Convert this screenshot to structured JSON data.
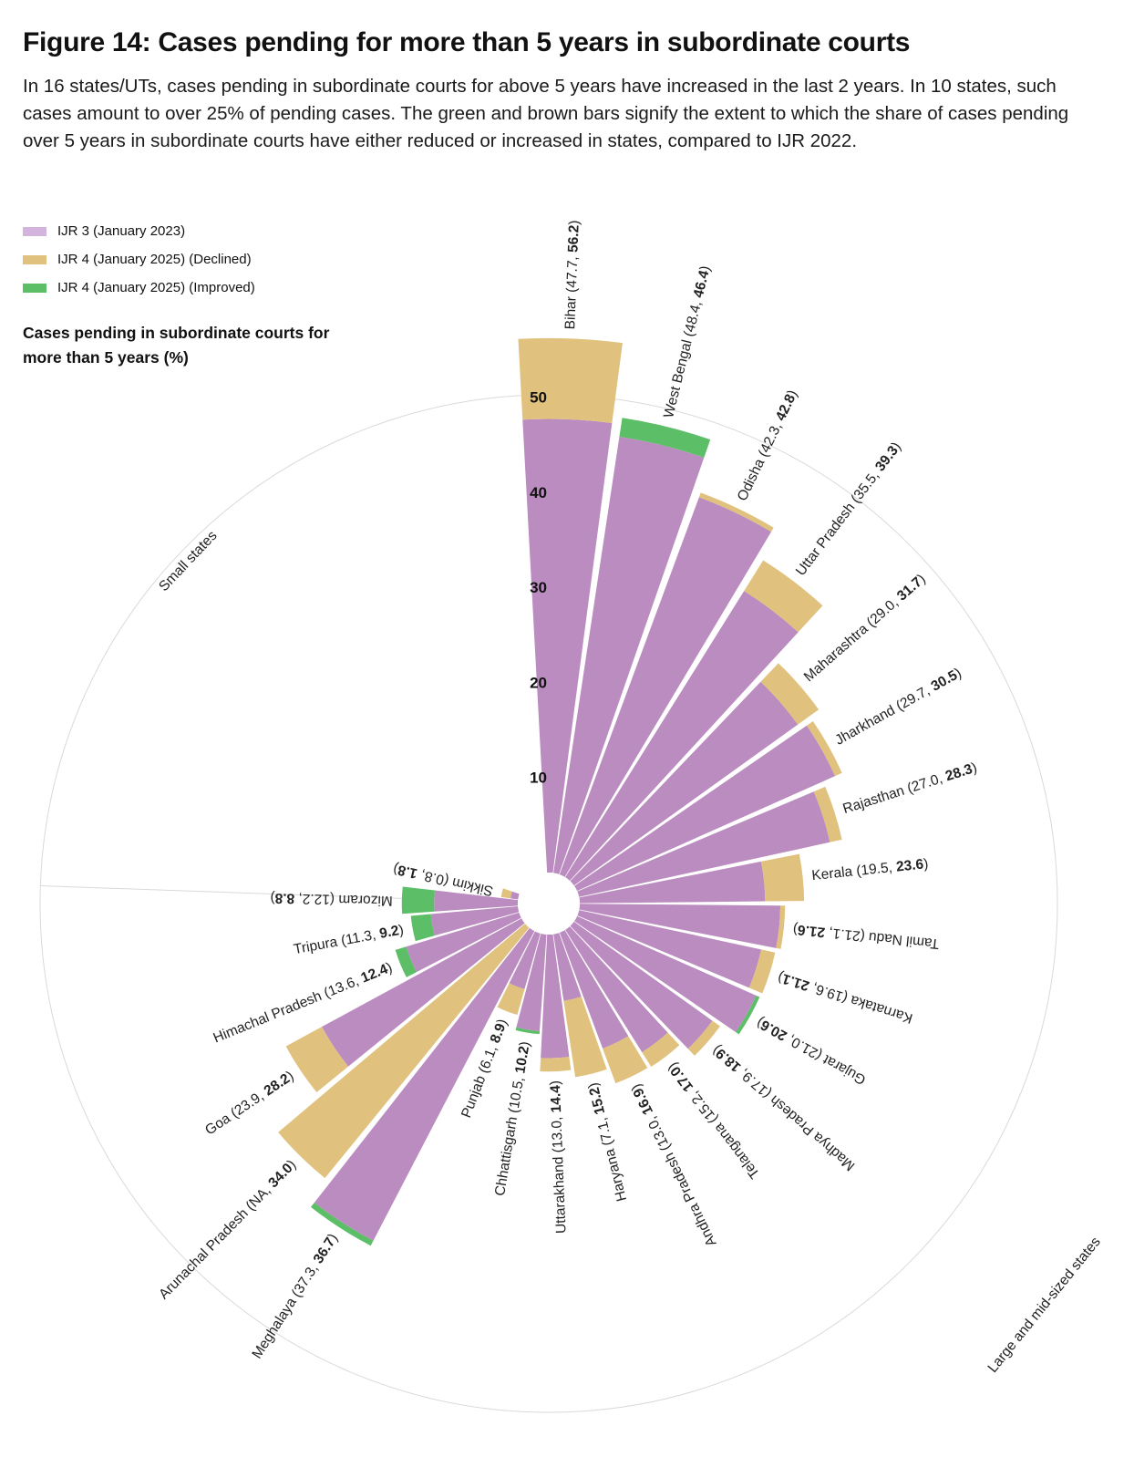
{
  "title": "Figure 14: Cases pending for more than 5 years in subordinate courts",
  "subtitle": "In 16 states/UTs, cases pending in subordinate courts for above 5 years have increased in the last 2 years. In 10 states, such cases amount to over 25% of pending cases. The green and brown bars signify the extent to which the share of cases pending over 5 years in subordinate courts have either reduced or increased in states, compared to IJR 2022.",
  "legend": [
    {
      "label": "IJR 3 (January 2023)",
      "color": "#d2b4dd"
    },
    {
      "label": "IJR 4 (January 2025) (Declined)",
      "color": "#e0c27e"
    },
    {
      "label": "IJR 4 (January 2025) (Improved)",
      "color": "#5cbf67"
    }
  ],
  "axis_title": "Cases pending in subordinate courts for more than 5 years (%)",
  "colors": {
    "ijr3": "#bb8cbf",
    "declined": "#e0c27e",
    "improved": "#5cbf67",
    "guide": "#d9d9d9"
  },
  "chart_data": {
    "type": "radial-bar",
    "value_axis": {
      "ticks": [
        10,
        20,
        30,
        40,
        50
      ],
      "max": 56.2
    },
    "groups": [
      {
        "name": "Large and mid-sized states",
        "categories": [
          "Bihar",
          "West Bengal",
          "Odisha",
          "Uttar Pradesh",
          "Maharashtra",
          "Jharkhand",
          "Rajasthan",
          "Kerala",
          "Tamil Nadu",
          "Karnataka",
          "Gujarat",
          "Madhya Pradesh",
          "Telangana",
          "Andhra Pradesh",
          "Haryana",
          "Uttarakhand",
          "Chhattisgarh",
          "Punjab"
        ]
      },
      {
        "name": "Small states",
        "categories": [
          "Meghalaya",
          "Arunachal Pradesh",
          "Goa",
          "Himachal Pradesh",
          "Tripura",
          "Mizoram",
          "Sikkim"
        ]
      }
    ],
    "series": [
      {
        "name": "IJR 3 (January 2023)",
        "values": [
          47.7,
          48.4,
          42.3,
          35.5,
          29.0,
          29.7,
          27.0,
          19.5,
          21.1,
          19.6,
          21.0,
          17.9,
          15.2,
          13.0,
          7.1,
          13.0,
          10.5,
          6.1,
          37.3,
          null,
          23.9,
          13.6,
          11.3,
          12.2,
          0.8
        ]
      },
      {
        "name": "IJR 4 (January 2025)",
        "values": [
          56.2,
          46.4,
          42.8,
          39.3,
          31.7,
          30.5,
          28.3,
          23.6,
          21.6,
          21.1,
          20.6,
          18.9,
          17.0,
          16.9,
          15.2,
          14.4,
          10.2,
          8.9,
          36.7,
          34.0,
          28.2,
          12.4,
          9.2,
          8.8,
          1.8
        ]
      }
    ],
    "categories": [
      "Bihar",
      "West Bengal",
      "Odisha",
      "Uttar Pradesh",
      "Maharashtra",
      "Jharkhand",
      "Rajasthan",
      "Kerala",
      "Tamil Nadu",
      "Karnataka",
      "Gujarat",
      "Madhya Pradesh",
      "Telangana",
      "Andhra Pradesh",
      "Haryana",
      "Uttarakhand",
      "Chhattisgarh",
      "Punjab",
      "Meghalaya",
      "Arunachal Pradesh",
      "Goa",
      "Himachal Pradesh",
      "Tripura",
      "Mizoram",
      "Sikkim"
    ],
    "labels": [
      {
        "name": "Bihar",
        "prev": "47.7",
        "curr": "56.2"
      },
      {
        "name": "West Bengal",
        "prev": "48.4",
        "curr": "46.4"
      },
      {
        "name": "Odisha",
        "prev": "42.3",
        "curr": "42.8"
      },
      {
        "name": "Uttar Pradesh",
        "prev": "35.5",
        "curr": "39.3"
      },
      {
        "name": "Maharashtra",
        "prev": "29.0",
        "curr": "31.7"
      },
      {
        "name": "Jharkhand",
        "prev": "29.7",
        "curr": "30.5"
      },
      {
        "name": "Rajasthan",
        "prev": "27.0",
        "curr": "28.3"
      },
      {
        "name": "Kerala",
        "prev": "19.5",
        "curr": "23.6"
      },
      {
        "name": "Tamil Nadu",
        "prev": "21.1",
        "curr": "21.6"
      },
      {
        "name": "Karnataka",
        "prev": "19.6",
        "curr": "21.1"
      },
      {
        "name": "Gujarat",
        "prev": "21.0",
        "curr": "20.6"
      },
      {
        "name": "Madhya Pradesh",
        "prev": "17.9",
        "curr": "18.9"
      },
      {
        "name": "Telangana",
        "prev": "15.2",
        "curr": "17.0"
      },
      {
        "name": "Andhra Pradesh",
        "prev": "13.0",
        "curr": "16.9"
      },
      {
        "name": "Haryana",
        "prev": "7.1",
        "curr": "15.2"
      },
      {
        "name": "Uttarakhand",
        "prev": "13.0",
        "curr": "14.4"
      },
      {
        "name": "Chhattisgarh",
        "prev": "10.5",
        "curr": "10.2"
      },
      {
        "name": "Punjab",
        "prev": "6.1",
        "curr": "8.9"
      },
      {
        "name": "Meghalaya",
        "prev": "37.3",
        "curr": "36.7"
      },
      {
        "name": "Arunachal Pradesh",
        "prev": "NA",
        "curr": "34.0"
      },
      {
        "name": "Goa",
        "prev": "23.9",
        "curr": "28.2"
      },
      {
        "name": "Himachal Pradesh",
        "prev": "13.6",
        "curr": "12.4"
      },
      {
        "name": "Tripura",
        "prev": "11.3",
        "curr": "9.2"
      },
      {
        "name": "Mizoram",
        "prev": "12.2",
        "curr": "8.8"
      },
      {
        "name": "Sikkim",
        "prev": "0.8",
        "curr": "1.8"
      }
    ]
  }
}
